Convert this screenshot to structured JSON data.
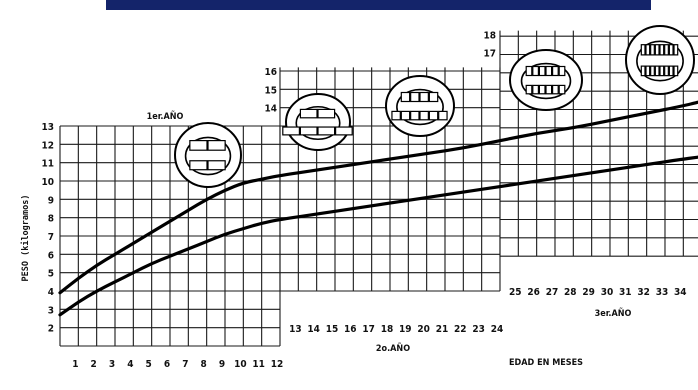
{
  "banner_color": "#14246a",
  "chart_data": {
    "type": "line",
    "title": "",
    "xlabel": "EDAD EN MESES",
    "ylabel": "PESO (kilogramos)",
    "panels": [
      {
        "label": "1er.AÑO",
        "x_ticks": [
          "1",
          "2",
          "3",
          "4",
          "5",
          "6",
          "7",
          "8",
          "9",
          "10",
          "11",
          "12"
        ],
        "y_ticks": [
          "2",
          "3",
          "4",
          "5",
          "6",
          "7",
          "8",
          "9",
          "10",
          "11",
          "12",
          "13"
        ]
      },
      {
        "label": "2o.AÑO",
        "x_ticks": [
          "13",
          "14",
          "15",
          "16",
          "17",
          "18",
          "19",
          "20",
          "21",
          "22",
          "23",
          "24"
        ],
        "y_ticks": [
          "14",
          "15",
          "16"
        ]
      },
      {
        "label": "3er.AÑO",
        "x_ticks": [
          "25",
          "26",
          "27",
          "28",
          "29",
          "30",
          "31",
          "32",
          "33",
          "34"
        ],
        "y_ticks": [
          "17",
          "18"
        ]
      }
    ],
    "series": [
      {
        "x": [
          0,
          1,
          2,
          3,
          4,
          5,
          6,
          7,
          8,
          9,
          10,
          11,
          12,
          14,
          16,
          18,
          20,
          22,
          24,
          26,
          28,
          30,
          32,
          34,
          35
        ],
        "y": [
          3.9,
          4.7,
          5.4,
          6.0,
          6.6,
          7.2,
          7.8,
          8.4,
          9.0,
          9.5,
          9.9,
          10.1,
          10.3,
          10.6,
          10.9,
          11.2,
          11.5,
          11.8,
          12.2,
          12.6,
          12.9,
          13.3,
          13.7,
          14.1,
          14.3
        ]
      },
      {
        "x": [
          0,
          1,
          2,
          3,
          4,
          5,
          6,
          7,
          8,
          9,
          10,
          11,
          12,
          14,
          16,
          18,
          20,
          22,
          24,
          26,
          28,
          30,
          32,
          34,
          35
        ],
        "y": [
          2.7,
          3.4,
          4.0,
          4.5,
          5.0,
          5.5,
          5.9,
          6.3,
          6.7,
          7.1,
          7.4,
          7.7,
          7.9,
          8.2,
          8.5,
          8.8,
          9.1,
          9.4,
          9.7,
          10.0,
          10.3,
          10.6,
          10.9,
          11.2,
          11.3
        ]
      }
    ],
    "xlim": [
      0,
      35
    ],
    "ylim": [
      1,
      18
    ],
    "grid": true
  }
}
